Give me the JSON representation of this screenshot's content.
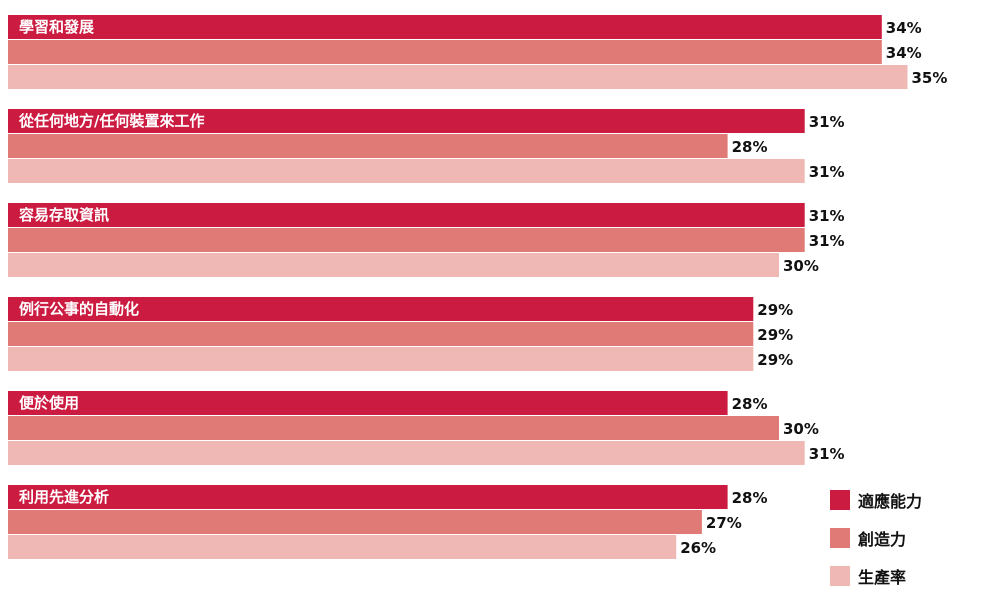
{
  "chart_data": {
    "type": "bar",
    "orientation": "horizontal",
    "categories": [
      "學習和發展",
      "從任何地方/任何裝置來工作",
      "容易存取資訊",
      "例行公事的自動化",
      "便於使用",
      "利用先進分析"
    ],
    "series": [
      {
        "name": "適應能力",
        "color": "#cc1b40",
        "values": [
          34,
          31,
          31,
          29,
          28,
          28
        ],
        "labels": [
          "34%",
          "31%",
          "31%",
          "29%",
          "28%",
          "28%"
        ]
      },
      {
        "name": "創造力",
        "color": "#e07a76",
        "values": [
          34,
          28,
          31,
          29,
          30,
          27
        ],
        "labels": [
          "34%",
          "28%",
          "31%",
          "29%",
          "30%",
          "27%"
        ]
      },
      {
        "name": "生產率",
        "color": "#efb8b4",
        "values": [
          35,
          31,
          30,
          29,
          31,
          26
        ],
        "labels": [
          "35%",
          "31%",
          "30%",
          "29%",
          "31%",
          "26%"
        ]
      }
    ],
    "unit": "%",
    "xlim": [
      0,
      35
    ],
    "grid": false,
    "axes_visible": false,
    "legend_position": "bottom-right"
  }
}
